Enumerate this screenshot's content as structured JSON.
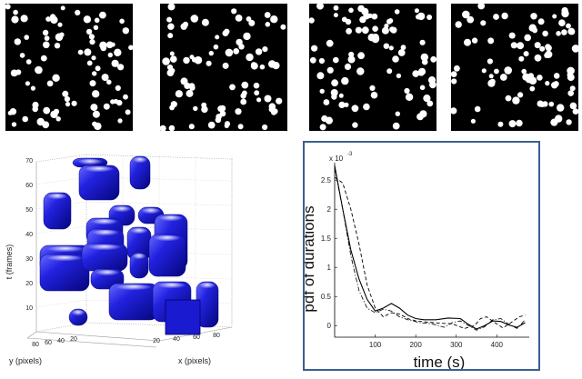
{
  "frames": [
    {
      "name": "frame-1",
      "dot_color": "#ffffff",
      "bg": "#000000"
    },
    {
      "name": "frame-2",
      "dot_color": "#ffffff",
      "bg": "#000000"
    },
    {
      "name": "frame-3",
      "dot_color": "#ffffff",
      "bg": "#000000"
    },
    {
      "name": "frame-4",
      "dot_color": "#ffffff",
      "bg": "#000000"
    }
  ],
  "volume_plot": {
    "t_axis_label": "t (frames)",
    "y_axis_label": "y (pixels)",
    "x_axis_label": "x (pixels)",
    "t_ticks": [
      "10",
      "20",
      "30",
      "40",
      "50",
      "60",
      "70"
    ],
    "y_ticks": [
      "20",
      "40",
      "60",
      "80"
    ],
    "x_ticks": [
      "20",
      "40",
      "60",
      "80"
    ],
    "blob_color": "#1a1adb"
  },
  "chart_data": {
    "type": "line",
    "xlabel": "time (s)",
    "ylabel": "pdf of durations",
    "y_exponent_label": "x 10",
    "y_exponent_power": "-3",
    "xlim": [
      0,
      480
    ],
    "ylim": [
      -0.2,
      2.8
    ],
    "x_ticks": [
      "100",
      "200",
      "300",
      "400"
    ],
    "y_ticks": [
      "0",
      "0.5",
      "1",
      "1.5",
      "2",
      "2.5"
    ],
    "border_color": "#3a5f8f",
    "series": [
      {
        "style": "solid",
        "points": [
          [
            0,
            2.75
          ],
          [
            20,
            2.0
          ],
          [
            40,
            1.3
          ],
          [
            60,
            0.8
          ],
          [
            80,
            0.45
          ],
          [
            100,
            0.25
          ],
          [
            120,
            0.3
          ],
          [
            140,
            0.38
          ],
          [
            160,
            0.3
          ],
          [
            180,
            0.18
          ],
          [
            200,
            0.12
          ],
          [
            220,
            0.1
          ],
          [
            250,
            0.1
          ],
          [
            280,
            0.13
          ],
          [
            310,
            0.12
          ],
          [
            330,
            0.02
          ],
          [
            350,
            -0.06
          ],
          [
            370,
            0.0
          ],
          [
            390,
            0.08
          ],
          [
            410,
            0.07
          ],
          [
            430,
            0.01
          ],
          [
            450,
            -0.03
          ],
          [
            470,
            0.05
          ]
        ]
      },
      {
        "style": "dashed",
        "points": [
          [
            0,
            2.55
          ],
          [
            20,
            2.45
          ],
          [
            40,
            2.0
          ],
          [
            60,
            1.4
          ],
          [
            80,
            0.7
          ],
          [
            100,
            0.3
          ],
          [
            120,
            0.15
          ],
          [
            140,
            0.22
          ],
          [
            160,
            0.2
          ],
          [
            180,
            0.12
          ],
          [
            200,
            0.08
          ],
          [
            230,
            0.06
          ],
          [
            260,
            0.04
          ],
          [
            290,
            0.03
          ],
          [
            320,
            -0.05
          ],
          [
            345,
            0.0
          ],
          [
            360,
            0.12
          ],
          [
            375,
            0.15
          ],
          [
            395,
            0.05
          ],
          [
            415,
            -0.04
          ],
          [
            435,
            0.05
          ],
          [
            455,
            0.15
          ],
          [
            470,
            0.18
          ]
        ]
      },
      {
        "style": "dashdot",
        "points": [
          [
            0,
            2.7
          ],
          [
            20,
            2.0
          ],
          [
            40,
            1.2
          ],
          [
            60,
            0.6
          ],
          [
            80,
            0.3
          ],
          [
            100,
            0.22
          ],
          [
            120,
            0.28
          ],
          [
            140,
            0.25
          ],
          [
            160,
            0.15
          ],
          [
            180,
            0.1
          ],
          [
            210,
            0.05
          ],
          [
            240,
            0.03
          ],
          [
            270,
            -0.03
          ],
          [
            290,
            0.05
          ],
          [
            310,
            0.08
          ],
          [
            330,
            0.0
          ],
          [
            350,
            -0.08
          ],
          [
            370,
            -0.02
          ],
          [
            390,
            0.1
          ],
          [
            410,
            0.12
          ],
          [
            430,
            0.02
          ],
          [
            450,
            -0.05
          ],
          [
            470,
            0.1
          ]
        ]
      }
    ]
  }
}
